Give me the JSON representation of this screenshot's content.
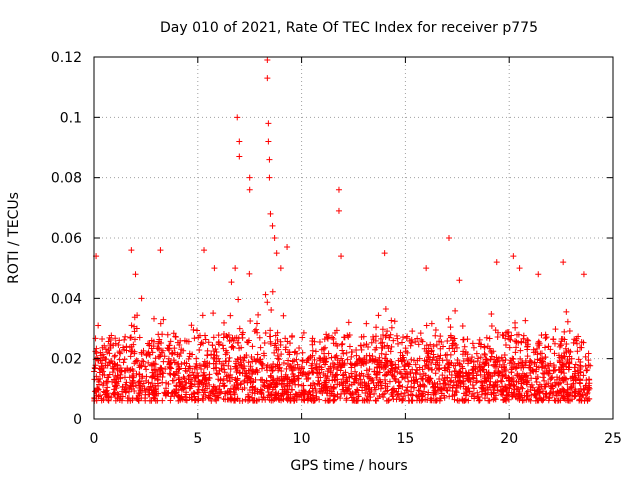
{
  "chart_data": {
    "type": "scatter",
    "title": "Day 010 of 2021, Rate Of TEC Index for receiver p775",
    "xlabel": "GPS time / hours",
    "ylabel": "ROTI / TECUs",
    "xlim": [
      0,
      25
    ],
    "ylim": [
      0,
      0.12
    ],
    "x_ticks": [
      0,
      5,
      10,
      15,
      20,
      25
    ],
    "x_tick_labels": [
      "0",
      "5",
      "10",
      "15",
      "20",
      "25"
    ],
    "y_ticks": [
      0,
      0.02,
      0.04,
      0.06,
      0.08,
      0.1,
      0.12
    ],
    "y_tick_labels": [
      "0",
      "0.02",
      "0.04",
      "0.06",
      "0.08",
      "0.1",
      "0.12"
    ],
    "grid": true,
    "marker": "+",
    "series": [
      {
        "name": "ROTI",
        "color": "#ff0000",
        "band_note": "dense band 0.005–0.03 TECUs across 0–24 h",
        "outliers": [
          {
            "x": 0.1,
            "y": 0.054
          },
          {
            "x": 0.2,
            "y": 0.031
          },
          {
            "x": 1.8,
            "y": 0.056
          },
          {
            "x": 2.0,
            "y": 0.048
          },
          {
            "x": 3.2,
            "y": 0.056
          },
          {
            "x": 5.3,
            "y": 0.056
          },
          {
            "x": 5.8,
            "y": 0.05
          },
          {
            "x": 6.8,
            "y": 0.05
          },
          {
            "x": 6.9,
            "y": 0.1
          },
          {
            "x": 7.0,
            "y": 0.092
          },
          {
            "x": 7.0,
            "y": 0.087
          },
          {
            "x": 7.5,
            "y": 0.08
          },
          {
            "x": 7.5,
            "y": 0.076
          },
          {
            "x": 8.35,
            "y": 0.119
          },
          {
            "x": 8.35,
            "y": 0.113
          },
          {
            "x": 8.4,
            "y": 0.098
          },
          {
            "x": 8.4,
            "y": 0.092
          },
          {
            "x": 8.45,
            "y": 0.086
          },
          {
            "x": 8.45,
            "y": 0.08
          },
          {
            "x": 8.5,
            "y": 0.068
          },
          {
            "x": 8.6,
            "y": 0.064
          },
          {
            "x": 8.7,
            "y": 0.06
          },
          {
            "x": 8.8,
            "y": 0.055
          },
          {
            "x": 9.0,
            "y": 0.05
          },
          {
            "x": 9.3,
            "y": 0.057
          },
          {
            "x": 11.8,
            "y": 0.076
          },
          {
            "x": 11.8,
            "y": 0.069
          },
          {
            "x": 11.9,
            "y": 0.054
          },
          {
            "x": 14.0,
            "y": 0.055
          },
          {
            "x": 16.0,
            "y": 0.05
          },
          {
            "x": 17.1,
            "y": 0.06
          },
          {
            "x": 17.6,
            "y": 0.046
          },
          {
            "x": 19.4,
            "y": 0.052
          },
          {
            "x": 20.2,
            "y": 0.054
          },
          {
            "x": 20.5,
            "y": 0.05
          },
          {
            "x": 21.4,
            "y": 0.048
          },
          {
            "x": 22.6,
            "y": 0.052
          },
          {
            "x": 23.6,
            "y": 0.048
          }
        ]
      }
    ]
  }
}
